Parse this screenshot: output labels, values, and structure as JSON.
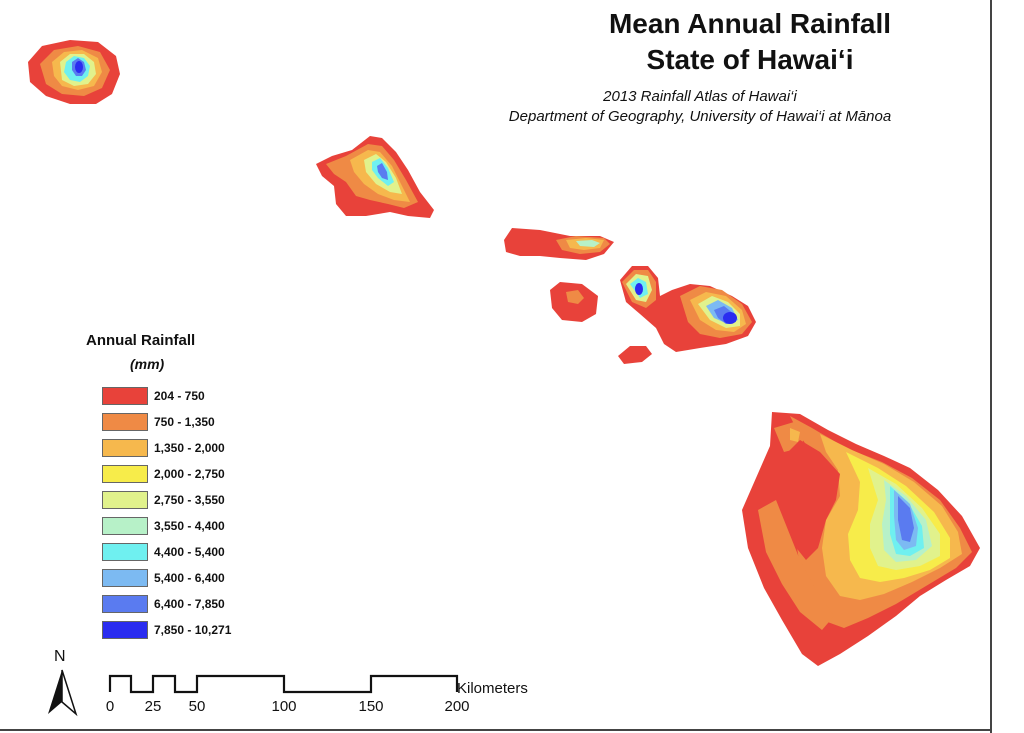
{
  "map": {
    "title_line1": "Mean Annual Rainfall",
    "title_line2": "State of Hawai‘i",
    "subtitle_line1": "2013 Rainfall Atlas of Hawai‘i",
    "subtitle_line2": "Department of Geography, University of Hawai‘i at Mānoa"
  },
  "legend": {
    "title": "Annual Rainfall",
    "unit": "(mm)",
    "classes": [
      {
        "label": "204 - 750",
        "color": "#e8423a"
      },
      {
        "label": "750 - 1,350",
        "color": "#ef8a45"
      },
      {
        "label": "1,350 - 2,000",
        "color": "#f6b84d"
      },
      {
        "label": "2,000 - 2,750",
        "color": "#f7ec4a"
      },
      {
        "label": "2,750 - 3,550",
        "color": "#e1f28c"
      },
      {
        "label": "3,550 - 4,400",
        "color": "#b7f1c8"
      },
      {
        "label": "4,400 - 5,400",
        "color": "#6ff0f0"
      },
      {
        "label": "5,400 - 6,400",
        "color": "#7cbaf2"
      },
      {
        "label": "6,400 - 7,850",
        "color": "#5a7bf0"
      },
      {
        "label": "7,850 - 10,271",
        "color": "#2a2cf0"
      }
    ]
  },
  "north_arrow": {
    "label": "N"
  },
  "scale_bar": {
    "unit": "Kilometers",
    "ticks": [
      "0",
      "25",
      "50",
      "100",
      "150",
      "200"
    ]
  }
}
